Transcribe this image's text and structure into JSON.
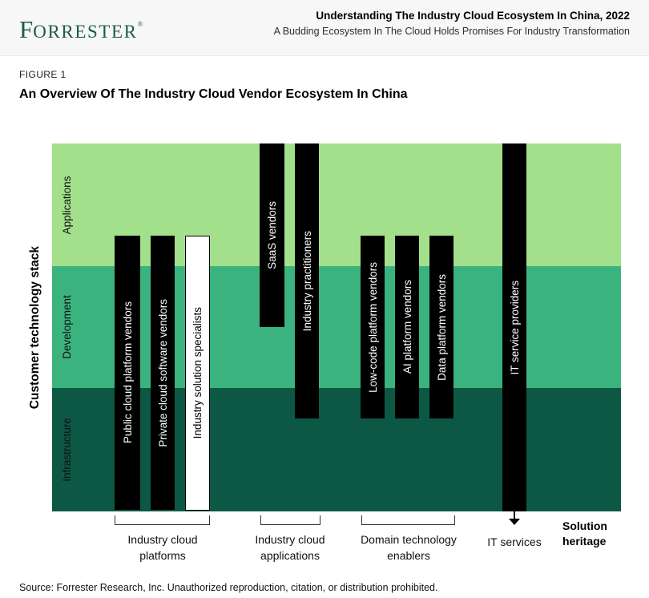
{
  "header": {
    "logo_initial": "F",
    "logo_rest": "ORRESTER",
    "logo_reg": "®",
    "brand_color": "#1d5c48",
    "title": "Understanding The Industry Cloud Ecosystem In China, 2022",
    "subtitle": "A Budding Ecosystem In The Cloud Holds Promises For Industry Transformation"
  },
  "figure": {
    "label": "FIGURE 1",
    "title": "An Overview Of The Industry Cloud Vendor Ecosystem In China"
  },
  "diagram": {
    "y_axis_label": "Customer technology stack",
    "x_axis_label": "Solution heritage",
    "bands": [
      {
        "label": "Applications",
        "color": "#a3e08c"
      },
      {
        "label": "Development",
        "color": "#3bb37f"
      },
      {
        "label": "Infrastructure",
        "color": "#0d5845"
      }
    ],
    "bars": [
      {
        "label": "Public cloud platform vendors",
        "variant": "black",
        "group": "Industry cloud platforms"
      },
      {
        "label": "Private cloud software vendors",
        "variant": "black",
        "group": "Industry cloud platforms"
      },
      {
        "label": "Industry solution specialists",
        "variant": "white",
        "group": "Industry cloud platforms"
      },
      {
        "label": "SaaS vendors",
        "variant": "black",
        "group": "Industry cloud applications"
      },
      {
        "label": "Industry practitioners",
        "variant": "black",
        "group": "Industry cloud applications"
      },
      {
        "label": "Low-code platform vendors",
        "variant": "black",
        "group": "Domain technology enablers"
      },
      {
        "label": "AI platform vendors",
        "variant": "black",
        "group": "Domain technology enablers"
      },
      {
        "label": "Data platform vendors",
        "variant": "black",
        "group": "Domain technology enablers"
      },
      {
        "label": "IT service providers",
        "variant": "black",
        "group": "IT services"
      }
    ],
    "groups": [
      {
        "label": "Industry cloud platforms",
        "bracket": true
      },
      {
        "label": "Industry cloud applications",
        "bracket": true
      },
      {
        "label": "Domain technology enablers",
        "bracket": true
      },
      {
        "label": "IT services",
        "bracket": false
      }
    ],
    "icons": {
      "solution_heritage_arrow": "down-arrow"
    }
  },
  "footer": {
    "source": "Source: Forrester Research, Inc. Unauthorized reproduction, citation, or distribution prohibited."
  }
}
